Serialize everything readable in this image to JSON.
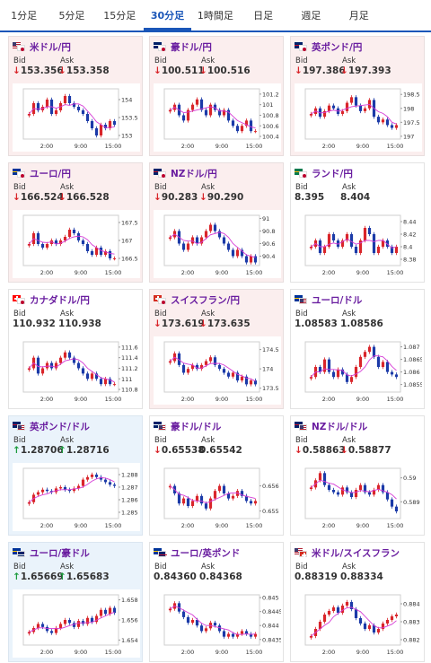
{
  "tabs": [
    {
      "label": "1分足",
      "active": false
    },
    {
      "label": "5分足",
      "active": false
    },
    {
      "label": "15分足",
      "active": false
    },
    {
      "label": "30分足",
      "active": true
    },
    {
      "label": "1時間足",
      "active": false
    },
    {
      "label": "日足",
      "active": false
    },
    {
      "label": "週足",
      "active": false
    },
    {
      "label": "月足",
      "active": false
    }
  ],
  "labels": {
    "bid": "Bid",
    "ask": "Ask"
  },
  "colors": {
    "down": "#d9252a",
    "up": "#1a9a3c",
    "candle_up": "#d9252a",
    "candle_down": "#1b3aa8",
    "ma": "#d63bd6"
  },
  "cards": [
    {
      "pair": "米ドル/円",
      "flags": [
        "us",
        "jp"
      ],
      "dir": "down",
      "bid": "153.356",
      "ask": "153.358",
      "bid_arrow": "↓",
      "ask_arrow": "↓",
      "yticks": [
        "154",
        "153.5",
        "153"
      ],
      "xticks": [
        "2:00",
        "9:00",
        "15:00"
      ],
      "ylim": [
        152.9,
        154.3
      ],
      "trend": [
        153.6,
        153.9,
        153.7,
        153.8,
        154.0,
        153.6,
        153.7,
        153.9,
        154.1,
        153.9,
        153.8,
        153.7,
        153.6,
        153.4,
        153.2,
        153.0,
        153.3,
        153.2,
        153.4,
        153.3
      ]
    },
    {
      "pair": "豪ドル/円",
      "flags": [
        "au",
        "jp"
      ],
      "dir": "down",
      "bid": "100.511",
      "ask": "100.516",
      "bid_arrow": "↓",
      "ask_arrow": "↓",
      "yticks": [
        "101.2",
        "101",
        "100.8",
        "100.6",
        "100.4"
      ],
      "xticks": [
        "2:00",
        "9:00",
        "15:00"
      ],
      "ylim": [
        100.35,
        101.3
      ],
      "trend": [
        100.9,
        101.0,
        100.8,
        100.7,
        100.9,
        101.0,
        101.1,
        100.9,
        100.8,
        101.0,
        100.9,
        100.8,
        100.9,
        100.7,
        100.6,
        100.5,
        100.6,
        100.7,
        100.5,
        100.5
      ]
    },
    {
      "pair": "英ポンド/円",
      "flags": [
        "gb",
        "jp"
      ],
      "dir": "down",
      "bid": "197.386",
      "ask": "197.393",
      "bid_arrow": "↓",
      "ask_arrow": "↓",
      "yticks": [
        "198.5",
        "198",
        "197.5",
        "197"
      ],
      "xticks": [
        "2:00",
        "9:00",
        "15:00"
      ],
      "ylim": [
        196.9,
        198.7
      ],
      "trend": [
        197.8,
        198.0,
        197.7,
        197.9,
        198.1,
        198.0,
        197.8,
        197.9,
        198.2,
        198.4,
        198.1,
        197.9,
        198.0,
        198.3,
        197.7,
        197.5,
        197.6,
        197.4,
        197.3,
        197.4
      ]
    },
    {
      "pair": "ユーロ/円",
      "flags": [
        "eu",
        "jp"
      ],
      "dir": "down",
      "bid": "166.524",
      "ask": "166.528",
      "bid_arrow": "↓",
      "ask_arrow": "↓",
      "yticks": [
        "167.5",
        "167",
        "166.5"
      ],
      "xticks": [
        "2:00",
        "9:00",
        "15:00"
      ],
      "ylim": [
        166.3,
        167.7
      ],
      "trend": [
        166.9,
        167.2,
        166.9,
        166.8,
        166.9,
        167.0,
        166.9,
        167.0,
        167.1,
        167.3,
        167.2,
        167.0,
        166.9,
        166.7,
        166.6,
        166.8,
        166.6,
        166.7,
        166.5,
        166.5
      ]
    },
    {
      "pair": "NZドル/円",
      "flags": [
        "nz",
        "jp"
      ],
      "dir": "down",
      "bid": "90.283",
      "ask": "90.290",
      "bid_arrow": "↓",
      "ask_arrow": "↓",
      "yticks": [
        "91",
        "90.8",
        "90.6",
        "90.4"
      ],
      "xticks": [
        "2:00",
        "9:00",
        "15:00"
      ],
      "ylim": [
        90.25,
        91.05
      ],
      "trend": [
        90.7,
        90.8,
        90.6,
        90.5,
        90.6,
        90.7,
        90.6,
        90.7,
        90.8,
        90.9,
        90.8,
        90.7,
        90.6,
        90.5,
        90.4,
        90.5,
        90.4,
        90.3,
        90.4,
        90.3
      ]
    },
    {
      "pair": "ランド/円",
      "flags": [
        "za",
        "jp"
      ],
      "dir": "flat",
      "bid": "8.395",
      "ask": "8.404",
      "bid_arrow": "",
      "ask_arrow": "",
      "yticks": [
        "8.44",
        "8.42",
        "8.4",
        "8.38"
      ],
      "xticks": [
        "2:00",
        "9:00",
        "15:00"
      ],
      "ylim": [
        8.37,
        8.45
      ],
      "trend": [
        8.4,
        8.41,
        8.39,
        8.4,
        8.42,
        8.41,
        8.4,
        8.41,
        8.42,
        8.4,
        8.39,
        8.41,
        8.43,
        8.42,
        8.39,
        8.4,
        8.41,
        8.4,
        8.39,
        8.4
      ]
    },
    {
      "pair": "カナダドル/円",
      "flags": [
        "ca",
        "jp"
      ],
      "dir": "flat",
      "bid": "110.932",
      "ask": "110.938",
      "bid_arrow": "",
      "ask_arrow": "",
      "yticks": [
        "111.6",
        "111.4",
        "111.2",
        "111",
        "110.8"
      ],
      "xticks": [
        "2:00",
        "9:00",
        "15:00"
      ],
      "ylim": [
        110.75,
        111.7
      ],
      "trend": [
        111.2,
        111.4,
        111.1,
        111.2,
        111.3,
        111.2,
        111.3,
        111.4,
        111.5,
        111.4,
        111.3,
        111.2,
        111.1,
        111.0,
        111.1,
        111.0,
        110.9,
        111.0,
        110.9,
        110.9
      ]
    },
    {
      "pair": "スイスフラン/円",
      "flags": [
        "ch",
        "jp"
      ],
      "dir": "down",
      "bid": "173.619",
      "ask": "173.635",
      "bid_arrow": "↓",
      "ask_arrow": "↓",
      "yticks": [
        "174.5",
        "174",
        "173.5"
      ],
      "xticks": [
        "2:00",
        "9:00",
        "15:00"
      ],
      "ylim": [
        173.4,
        174.7
      ],
      "trend": [
        174.2,
        174.4,
        174.1,
        173.9,
        174.0,
        174.1,
        174.0,
        174.1,
        174.2,
        174.3,
        174.1,
        174.0,
        173.9,
        173.8,
        173.9,
        173.7,
        173.8,
        173.6,
        173.7,
        173.6
      ]
    },
    {
      "pair": "ユーロ/ドル",
      "flags": [
        "eu",
        "us"
      ],
      "dir": "flat",
      "bid": "1.08583",
      "ask": "1.08586",
      "bid_arrow": "",
      "ask_arrow": "",
      "yticks": [
        "1.087",
        "1.0865",
        "1.086",
        "1.0855"
      ],
      "xticks": [
        "2:00",
        "9:00",
        "15:00"
      ],
      "ylim": [
        1.0852,
        1.0872
      ],
      "trend": [
        1.0858,
        1.0862,
        1.086,
        1.0865,
        1.086,
        1.0858,
        1.0861,
        1.0859,
        1.0856,
        1.0858,
        1.0862,
        1.0866,
        1.0868,
        1.087,
        1.0866,
        1.0862,
        1.0864,
        1.086,
        1.0859,
        1.0858
      ]
    },
    {
      "pair": "英ポンド/ドル",
      "flags": [
        "gb",
        "us"
      ],
      "dir": "up",
      "bid": "1.28706",
      "ask": "1.28716",
      "bid_arrow": "↑",
      "ask_arrow": "↑",
      "yticks": [
        "1.288",
        "1.287",
        "1.286",
        "1.285"
      ],
      "xticks": [
        "2:00",
        "9:00",
        "15:00"
      ],
      "ylim": [
        1.2845,
        1.2885
      ],
      "trend": [
        1.2858,
        1.2864,
        1.2866,
        1.2868,
        1.2867,
        1.2866,
        1.2869,
        1.287,
        1.2868,
        1.2867,
        1.2869,
        1.2871,
        1.2876,
        1.2878,
        1.288,
        1.2878,
        1.2876,
        1.2874,
        1.2872,
        1.2871
      ]
    },
    {
      "pair": "豪ドル/ドル",
      "flags": [
        "au",
        "us"
      ],
      "dir": "flat",
      "bid": "0.65538",
      "ask": "0.65542",
      "bid_arrow": "↓",
      "ask_arrow": "",
      "yticks": [
        "0.656",
        "0.655"
      ],
      "xticks": [
        "2:00",
        "9:00",
        "15:00"
      ],
      "ylim": [
        0.6547,
        0.6567
      ],
      "trend": [
        0.656,
        0.6557,
        0.6553,
        0.6555,
        0.6552,
        0.6554,
        0.6556,
        0.6553,
        0.6551,
        0.6555,
        0.6558,
        0.656,
        0.6557,
        0.6555,
        0.6556,
        0.6558,
        0.6556,
        0.6554,
        0.6553,
        0.6554
      ]
    },
    {
      "pair": "NZドル/ドル",
      "flags": [
        "nz",
        "us"
      ],
      "dir": "flat",
      "bid": "0.58863",
      "ask": "0.58877",
      "bid_arrow": "↓",
      "ask_arrow": "↓",
      "yticks": [
        "0.59",
        "0.589"
      ],
      "xticks": [
        "2:00",
        "9:00",
        "15:00"
      ],
      "ylim": [
        0.5883,
        0.5904
      ],
      "trend": [
        0.5896,
        0.5899,
        0.5902,
        0.5897,
        0.5895,
        0.5894,
        0.5893,
        0.5896,
        0.5894,
        0.5892,
        0.5895,
        0.5897,
        0.5894,
        0.5893,
        0.5895,
        0.5897,
        0.5894,
        0.5891,
        0.5888,
        0.5886
      ]
    },
    {
      "pair": "ユーロ/豪ドル",
      "flags": [
        "eu",
        "au"
      ],
      "dir": "up",
      "bid": "1.65669",
      "ask": "1.65683",
      "bid_arrow": "↑",
      "ask_arrow": "↑",
      "yticks": [
        "1.658",
        "1.656",
        "1.654"
      ],
      "xticks": [
        "2:00",
        "9:00",
        "15:00"
      ],
      "ylim": [
        1.6535,
        1.6585
      ],
      "trend": [
        1.6548,
        1.6552,
        1.6556,
        1.6553,
        1.6549,
        1.6547,
        1.6552,
        1.6556,
        1.656,
        1.6557,
        1.6553,
        1.6559,
        1.6556,
        1.6562,
        1.6558,
        1.6564,
        1.657,
        1.6566,
        1.6572,
        1.6567
      ]
    },
    {
      "pair": "ユーロ/英ポンド",
      "flags": [
        "eu",
        "gb"
      ],
      "dir": "flat",
      "bid": "0.84360",
      "ask": "0.84368",
      "bid_arrow": "",
      "ask_arrow": "",
      "yticks": [
        "0.845",
        "0.8445",
        "0.844",
        "0.8435"
      ],
      "xticks": [
        "2:00",
        "9:00",
        "15:00"
      ],
      "ylim": [
        0.8433,
        0.8451
      ],
      "trend": [
        0.8446,
        0.8448,
        0.8445,
        0.8443,
        0.8441,
        0.8442,
        0.844,
        0.8438,
        0.8439,
        0.8441,
        0.844,
        0.8438,
        0.8436,
        0.8437,
        0.8436,
        0.8437,
        0.8438,
        0.8437,
        0.8436,
        0.8437
      ]
    },
    {
      "pair": "米ドル/スイスフラン",
      "flags": [
        "us",
        "ch"
      ],
      "dir": "flat",
      "bid": "0.88319",
      "ask": "0.88334",
      "bid_arrow": "",
      "ask_arrow": "",
      "yticks": [
        "0.884",
        "0.883",
        "0.882"
      ],
      "xticks": [
        "2:00",
        "9:00",
        "15:00"
      ],
      "ylim": [
        0.8817,
        0.8845
      ],
      "trend": [
        0.8822,
        0.8826,
        0.883,
        0.8834,
        0.8836,
        0.8838,
        0.8835,
        0.8839,
        0.8841,
        0.8837,
        0.8832,
        0.8829,
        0.8826,
        0.8828,
        0.8824,
        0.8826,
        0.8829,
        0.8831,
        0.8833,
        0.8834
      ]
    }
  ]
}
